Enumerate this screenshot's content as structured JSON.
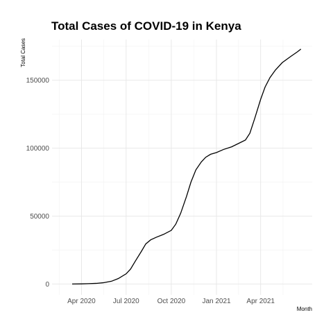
{
  "chart_data": {
    "type": "line",
    "title": "Total Cases of COVID-19 in Kenya",
    "xlabel": "Month",
    "ylabel": "Total Cases",
    "grid": true,
    "legend": "none",
    "colors": {
      "line": "#000000",
      "grid_major": "#e6e6e6",
      "grid_minor": "#f2f2f2"
    },
    "xlim": [
      "2020-02-01",
      "2021-07-15"
    ],
    "ylim": [
      -8000,
      180000
    ],
    "x_ticks": [
      {
        "date": "2020-04-01",
        "label": "Apr 2020"
      },
      {
        "date": "2020-07-01",
        "label": "Jul 2020"
      },
      {
        "date": "2020-10-01",
        "label": "Oct 2020"
      },
      {
        "date": "2021-01-01",
        "label": "Jan 2021"
      },
      {
        "date": "2021-04-01",
        "label": "Apr 2021"
      }
    ],
    "y_ticks": [
      {
        "value": 0,
        "label": "0"
      },
      {
        "value": 50000,
        "label": "50000"
      },
      {
        "value": 100000,
        "label": "100000"
      },
      {
        "value": 150000,
        "label": "150000"
      }
    ],
    "series": [
      {
        "x": [
          "2020-03-13",
          "2020-04-01",
          "2020-04-15",
          "2020-05-01",
          "2020-05-15",
          "2020-06-01",
          "2020-06-15",
          "2020-07-01",
          "2020-07-10",
          "2020-07-20",
          "2020-08-01",
          "2020-08-10",
          "2020-08-20",
          "2020-09-01",
          "2020-09-15",
          "2020-10-01",
          "2020-10-10",
          "2020-10-20",
          "2020-11-01",
          "2020-11-10",
          "2020-11-20",
          "2020-12-01",
          "2020-12-10",
          "2020-12-20",
          "2021-01-01",
          "2021-01-15",
          "2021-02-01",
          "2021-02-15",
          "2021-03-01",
          "2021-03-10",
          "2021-03-20",
          "2021-04-01",
          "2021-04-10",
          "2021-04-20",
          "2021-05-01",
          "2021-05-15",
          "2021-06-01",
          "2021-06-15",
          "2021-06-22"
        ],
        "values": [
          1,
          80,
          250,
          450,
          900,
          2000,
          4000,
          7500,
          11000,
          17000,
          24000,
          29500,
          32500,
          34500,
          36500,
          39500,
          44000,
          52000,
          64500,
          75000,
          84000,
          89800,
          93300,
          95500,
          96800,
          99000,
          101000,
          103500,
          106000,
          111000,
          122000,
          136000,
          145000,
          152000,
          157500,
          163000,
          167500,
          171000,
          173000
        ]
      }
    ]
  }
}
